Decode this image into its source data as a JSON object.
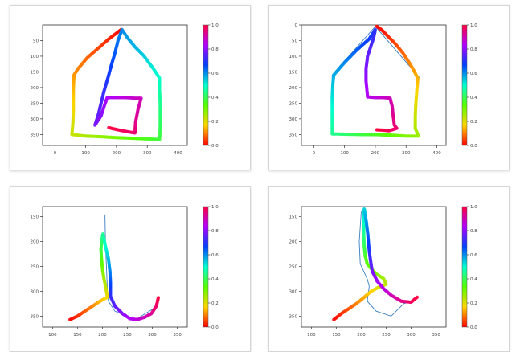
{
  "colormap": {
    "name": "hsv",
    "stops": [
      "#ff0000",
      "#ffd400",
      "#58ff00",
      "#00ffd0",
      "#0040ff",
      "#b000ff",
      "#ff0040"
    ],
    "ticks": [
      "0.0",
      "0.2",
      "0.4",
      "0.6",
      "0.8",
      "1.0"
    ]
  },
  "line_color": "#3a7ebf",
  "chart_data": [
    {
      "type": "scatter",
      "xlim": [
        -40,
        430
      ],
      "ylim": [
        385,
        0
      ],
      "xticks": [
        0,
        100,
        200,
        300,
        400
      ],
      "yticks": [
        50,
        100,
        150,
        200,
        250,
        300,
        350
      ],
      "reference_line": [],
      "trajectory": [
        [
          215,
          15
        ],
        [
          175,
          45
        ],
        [
          140,
          75
        ],
        [
          105,
          105
        ],
        [
          75,
          140
        ],
        [
          62,
          160
        ],
        [
          60,
          200
        ],
        [
          60,
          240
        ],
        [
          60,
          280
        ],
        [
          58,
          320
        ],
        [
          55,
          350
        ],
        [
          100,
          355
        ],
        [
          150,
          357
        ],
        [
          200,
          360
        ],
        [
          250,
          362
        ],
        [
          300,
          364
        ],
        [
          340,
          366
        ],
        [
          342,
          330
        ],
        [
          342,
          290
        ],
        [
          342,
          250
        ],
        [
          340,
          210
        ],
        [
          340,
          170
        ],
        [
          320,
          140
        ],
        [
          290,
          100
        ],
        [
          260,
          70
        ],
        [
          235,
          40
        ],
        [
          218,
          15
        ],
        [
          205,
          50
        ],
        [
          195,
          90
        ],
        [
          183,
          130
        ],
        [
          172,
          170
        ],
        [
          160,
          210
        ],
        [
          150,
          250
        ],
        [
          140,
          290
        ],
        [
          130,
          320
        ],
        [
          150,
          290
        ],
        [
          160,
          260
        ],
        [
          170,
          232
        ],
        [
          200,
          232
        ],
        [
          230,
          232
        ],
        [
          260,
          234
        ],
        [
          280,
          234
        ],
        [
          270,
          270
        ],
        [
          262,
          310
        ],
        [
          260,
          345
        ],
        [
          230,
          340
        ],
        [
          200,
          334
        ],
        [
          175,
          328
        ]
      ]
    },
    {
      "type": "scatter",
      "xlim": [
        -40,
        430
      ],
      "ylim": [
        385,
        0
      ],
      "xticks": [
        0,
        100,
        200,
        300,
        400
      ],
      "yticks": [
        0,
        50,
        100,
        150,
        200,
        250,
        300,
        350
      ],
      "reference_line": [
        [
          200,
          5
        ],
        [
          60,
          160
        ],
        [
          60,
          350
        ],
        [
          345,
          358
        ],
        [
          345,
          170
        ],
        [
          205,
          10
        ]
      ],
      "trajectory": [
        [
          205,
          5
        ],
        [
          220,
          15
        ],
        [
          240,
          35
        ],
        [
          265,
          60
        ],
        [
          290,
          90
        ],
        [
          310,
          120
        ],
        [
          325,
          145
        ],
        [
          338,
          170
        ],
        [
          335,
          210
        ],
        [
          332,
          250
        ],
        [
          330,
          290
        ],
        [
          330,
          330
        ],
        [
          340,
          355
        ],
        [
          300,
          355
        ],
        [
          250,
          352
        ],
        [
          200,
          350
        ],
        [
          150,
          350
        ],
        [
          100,
          349
        ],
        [
          60,
          348
        ],
        [
          60,
          310
        ],
        [
          60,
          270
        ],
        [
          60,
          230
        ],
        [
          62,
          190
        ],
        [
          65,
          160
        ],
        [
          100,
          120
        ],
        [
          140,
          80
        ],
        [
          180,
          45
        ],
        [
          200,
          15
        ],
        [
          195,
          40
        ],
        [
          185,
          70
        ],
        [
          175,
          100
        ],
        [
          170,
          140
        ],
        [
          170,
          180
        ],
        [
          175,
          230
        ],
        [
          200,
          232
        ],
        [
          225,
          232
        ],
        [
          248,
          234
        ],
        [
          255,
          260
        ],
        [
          258,
          290
        ],
        [
          262,
          320
        ],
        [
          270,
          330
        ],
        [
          245,
          338
        ],
        [
          225,
          336
        ],
        [
          205,
          335
        ]
      ]
    },
    {
      "type": "scatter",
      "xlim": [
        80,
        370
      ],
      "ylim": [
        372,
        130
      ],
      "xticks": [
        100,
        150,
        200,
        250,
        300,
        350
      ],
      "yticks": [
        150,
        200,
        250,
        300,
        350
      ],
      "reference_line": [
        [
          205,
          146
        ],
        [
          206,
          200
        ],
        [
          208,
          250
        ],
        [
          210,
          300
        ],
        [
          212,
          320
        ],
        [
          225,
          340
        ],
        [
          265,
          358
        ],
        [
          310,
          330
        ]
      ],
      "trajectory": [
        [
          135,
          357
        ],
        [
          150,
          350
        ],
        [
          165,
          340
        ],
        [
          180,
          330
        ],
        [
          195,
          320
        ],
        [
          210,
          312
        ],
        [
          207,
          295
        ],
        [
          203,
          275
        ],
        [
          200,
          255
        ],
        [
          198,
          235
        ],
        [
          197,
          215
        ],
        [
          199,
          195
        ],
        [
          201,
          185
        ],
        [
          206,
          210
        ],
        [
          212,
          235
        ],
        [
          215,
          260
        ],
        [
          216,
          285
        ],
        [
          216,
          310
        ],
        [
          225,
          330
        ],
        [
          240,
          345
        ],
        [
          255,
          355
        ],
        [
          270,
          357
        ],
        [
          285,
          352
        ],
        [
          298,
          345
        ],
        [
          308,
          330
        ],
        [
          312,
          313
        ]
      ]
    },
    {
      "type": "scatter",
      "xlim": [
        80,
        370
      ],
      "ylim": [
        372,
        130
      ],
      "xticks": [
        100,
        150,
        200,
        250,
        300,
        350
      ],
      "yticks": [
        150,
        200,
        250,
        300,
        350
      ],
      "reference_line": [
        [
          200,
          140
        ],
        [
          196,
          200
        ],
        [
          198,
          245
        ],
        [
          212,
          275
        ],
        [
          216,
          290
        ],
        [
          212,
          320
        ],
        [
          230,
          340
        ],
        [
          260,
          350
        ],
        [
          285,
          325
        ],
        [
          300,
          320
        ]
      ],
      "trajectory": [
        [
          145,
          357
        ],
        [
          160,
          345
        ],
        [
          175,
          335
        ],
        [
          190,
          325
        ],
        [
          205,
          313
        ],
        [
          220,
          300
        ],
        [
          235,
          292
        ],
        [
          250,
          286
        ],
        [
          245,
          275
        ],
        [
          230,
          265
        ],
        [
          220,
          255
        ],
        [
          212,
          245
        ],
        [
          208,
          230
        ],
        [
          206,
          210
        ],
        [
          205,
          190
        ],
        [
          205,
          170
        ],
        [
          205,
          150
        ],
        [
          206,
          135
        ],
        [
          210,
          160
        ],
        [
          213,
          185
        ],
        [
          215,
          210
        ],
        [
          218,
          235
        ],
        [
          222,
          260
        ],
        [
          232,
          280
        ],
        [
          245,
          295
        ],
        [
          260,
          308
        ],
        [
          280,
          320
        ],
        [
          300,
          322
        ],
        [
          312,
          312
        ]
      ]
    }
  ]
}
